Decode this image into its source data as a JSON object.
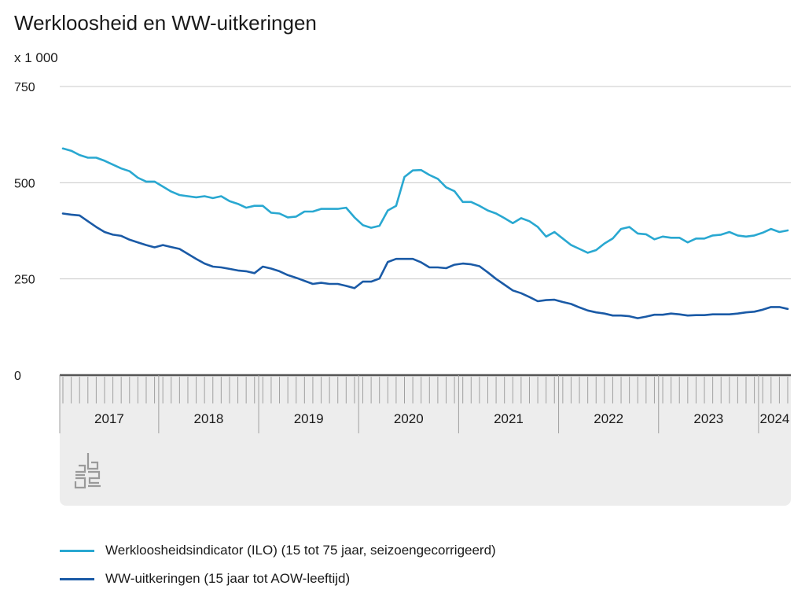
{
  "title": "Werkloosheid en WW-uitkeringen",
  "unit": "x 1 000",
  "colors": {
    "ilo": "#29a8d1",
    "ww": "#1a5aa6",
    "grid": "#c8c8c8",
    "axis_band": "#ededed",
    "tick": "#a0a0a0",
    "logo": "#9a9a9a"
  },
  "chart_data": {
    "type": "line",
    "title": "Werkloosheid en WW-uitkeringen",
    "ylabel": "x 1 000",
    "ylim": [
      0,
      750
    ],
    "yticks": [
      "0",
      "250",
      "500",
      "750"
    ],
    "ytick_values": [
      0,
      250,
      500,
      750
    ],
    "years": [
      "2017",
      "2018",
      "2019",
      "2020",
      "2021",
      "2022",
      "2023",
      "2024"
    ],
    "x_start": "2017-01",
    "x_end": "2024-04",
    "grid": true,
    "legend_position": "bottom",
    "series": [
      {
        "name": "Werkloosheidsindicator (ILO) (15 tot 75 jaar, seizoengecorrigeerd)",
        "values": [
          589,
          583,
          572,
          565,
          565,
          557,
          547,
          537,
          530,
          513,
          503,
          503,
          490,
          477,
          468,
          465,
          462,
          465,
          460,
          465,
          452,
          445,
          435,
          440,
          440,
          422,
          420,
          410,
          412,
          425,
          425,
          432,
          432,
          432,
          435,
          410,
          390,
          383,
          388,
          428,
          440,
          515,
          532,
          533,
          520,
          510,
          488,
          478,
          450,
          450,
          440,
          428,
          420,
          408,
          395,
          408,
          400,
          385,
          360,
          372,
          355,
          338,
          328,
          318,
          325,
          342,
          355,
          380,
          385,
          368,
          366,
          353,
          360,
          357,
          357,
          345,
          355,
          355,
          363,
          365,
          372,
          363,
          360,
          363,
          370,
          380,
          372,
          376
        ]
      },
      {
        "name": "WW-uitkeringen (15 jaar tot AOW-leeftijd)",
        "values": [
          420,
          417,
          415,
          400,
          385,
          372,
          365,
          362,
          352,
          345,
          338,
          332,
          338,
          333,
          328,
          315,
          302,
          290,
          282,
          280,
          276,
          272,
          270,
          265,
          282,
          277,
          270,
          260,
          253,
          245,
          237,
          240,
          237,
          237,
          232,
          226,
          243,
          243,
          251,
          294,
          302,
          302,
          302,
          293,
          280,
          280,
          278,
          287,
          290,
          288,
          283,
          267,
          250,
          235,
          220,
          213,
          203,
          192,
          195,
          196,
          190,
          185,
          176,
          168,
          163,
          160,
          155,
          155,
          153,
          148,
          152,
          157,
          157,
          160,
          158,
          155,
          156,
          156,
          158,
          158,
          158,
          160,
          163,
          165,
          170,
          177,
          177,
          172
        ]
      }
    ]
  },
  "legend": [
    {
      "label": "Werkloosheidsindicator (ILO) (15 tot 75 jaar, seizoengecorrigeerd)",
      "color": "#29a8d1"
    },
    {
      "label": "WW-uitkeringen (15 jaar tot AOW-leeftijd)",
      "color": "#1a5aa6"
    }
  ],
  "logo_icon": "cbs-logo-icon"
}
